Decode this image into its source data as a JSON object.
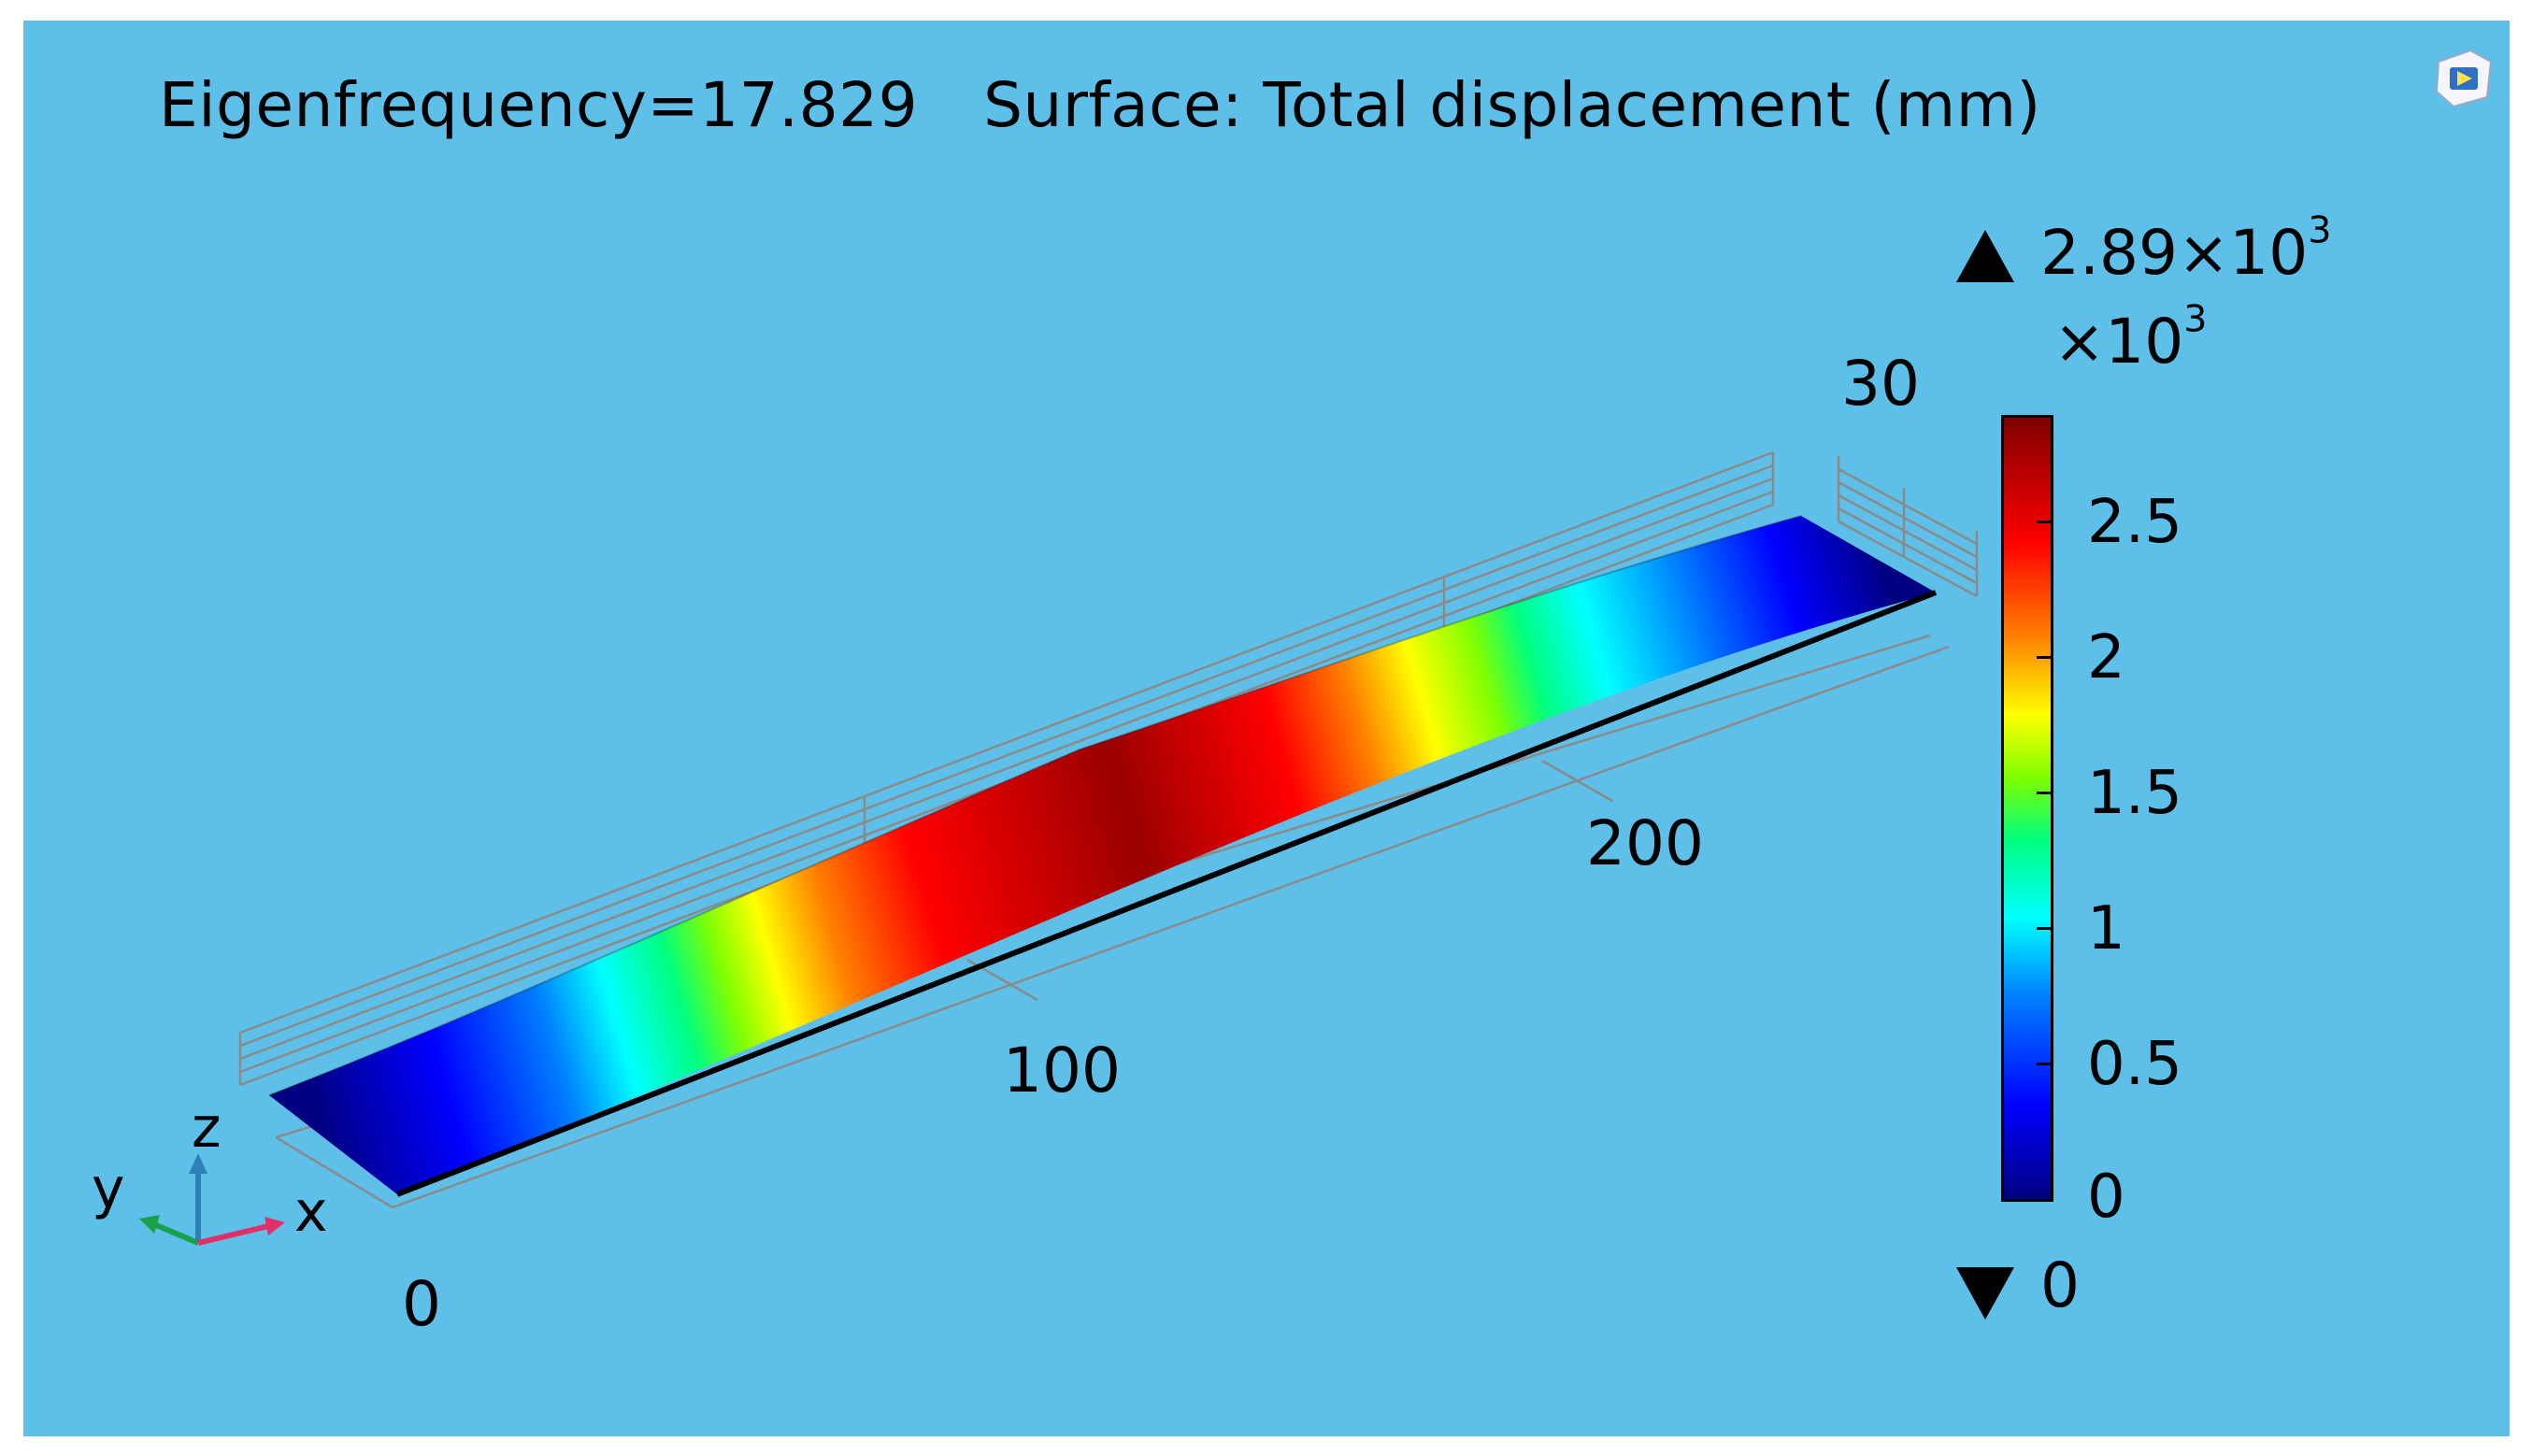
{
  "plot": {
    "title": "Eigenfrequency=17.829",
    "subtitle": "Surface: Total displacement (mm)"
  },
  "axis_ticks": {
    "x": [
      "0",
      "100",
      "200"
    ],
    "y": [
      "30"
    ]
  },
  "colorbar": {
    "max_marker": "2.89",
    "max_marker_exponent_base": "×10",
    "max_marker_exponent": "3",
    "multiplier_base": "×10",
    "multiplier_exponent": "3",
    "ticks": [
      "2.5",
      "2",
      "1.5",
      "1",
      "0.5",
      "0"
    ],
    "min_marker": "0",
    "colormap": [
      "#000080",
      "#0000ff",
      "#0080ff",
      "#00ffff",
      "#00ff80",
      "#80ff00",
      "#ffff00",
      "#ff8000",
      "#ff0000",
      "#800000"
    ]
  },
  "triad": {
    "z": "z",
    "y": "y",
    "x": "x",
    "colors": {
      "z": "#2f7fb8",
      "y": "#19a04a",
      "x": "#e0306a"
    }
  },
  "icons": {
    "corner": "comsol-logo-icon",
    "up": "triangle-up-icon",
    "down": "triangle-down-icon"
  },
  "colors": {
    "background": "#5ec0e9",
    "frame": "#8a8a8a"
  }
}
